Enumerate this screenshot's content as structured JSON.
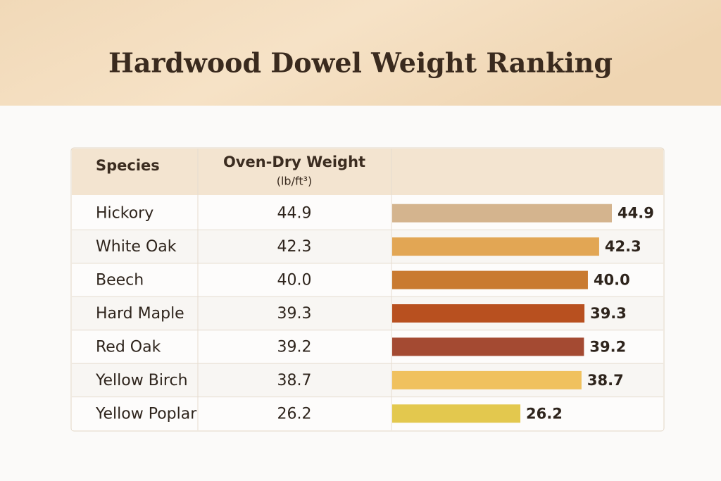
{
  "chart_data": {
    "type": "bar",
    "title": "Hardwood Dowel Weight Ranking",
    "label_header": "Species",
    "value_header": "Oven-Dry Weight",
    "unit": "(lb/ft³)",
    "categories": [
      "Hickory",
      "White Oak",
      "Beech",
      "Hard Maple",
      "Red Oak",
      "Yellow Birch",
      "Yellow Poplar"
    ],
    "values": [
      44.9,
      42.3,
      40.0,
      39.3,
      39.2,
      38.7,
      26.2
    ],
    "value_labels": [
      "44.9",
      "42.3",
      "40.0",
      "39.3",
      "39.2",
      "38.7",
      "26.2"
    ],
    "colors": [
      "#d4b48e",
      "#e2a654",
      "#c97a30",
      "#b8501f",
      "#a44a32",
      "#f0c15e",
      "#e3c84e"
    ]
  }
}
